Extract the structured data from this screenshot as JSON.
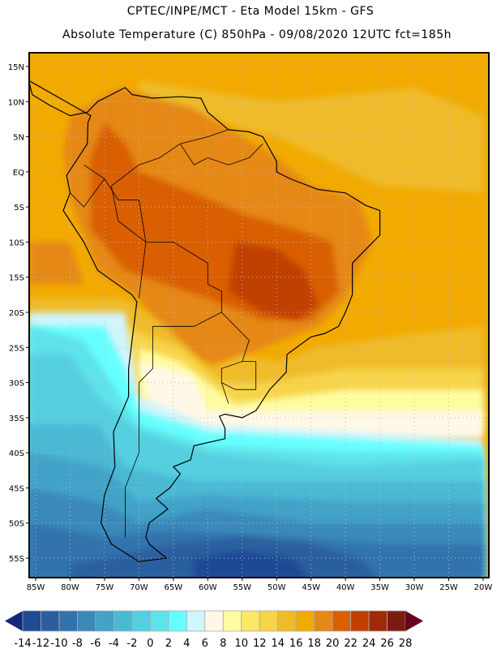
{
  "header": {
    "line1": "CPTEC/INPE/MCT -  Eta Model 15km - GFS",
    "line2": "Absolute Temperature (C) 850hPa - 09/08/2020 12UTC fct=185h"
  },
  "map": {
    "lat_labels": [
      "15N",
      "10N",
      "5N",
      "EQ",
      "5S",
      "10S",
      "15S",
      "20S",
      "25S",
      "30S",
      "35S",
      "40S",
      "45S",
      "50S",
      "55S"
    ],
    "lat_values": [
      15,
      10,
      5,
      0,
      -5,
      -10,
      -15,
      -20,
      -25,
      -30,
      -35,
      -40,
      -45,
      -50,
      -55
    ],
    "lon_labels": [
      "85W",
      "80W",
      "75W",
      "70W",
      "65W",
      "60W",
      "55W",
      "50W",
      "45W",
      "40W",
      "35W",
      "30W",
      "25W",
      "20W"
    ],
    "lon_values": [
      -85,
      -80,
      -75,
      -70,
      -65,
      -60,
      -55,
      -50,
      -45,
      -40,
      -35,
      -30,
      -25,
      -20
    ]
  },
  "colorbar": {
    "ticks": [
      "-14",
      "-12",
      "-10",
      "-8",
      "-6",
      "-4",
      "-2",
      "0",
      "2",
      "4",
      "6",
      "8",
      "10",
      "12",
      "14",
      "16",
      "18",
      "20",
      "22",
      "24",
      "26",
      "28"
    ],
    "under_color": "#15277a",
    "over_color": "#6a0020",
    "colors": [
      "#1f4a94",
      "#2a5e9f",
      "#3373ad",
      "#3a89ba",
      "#43a2c7",
      "#4bb8d4",
      "#54cfe0",
      "#5fe3ea",
      "#66ffff",
      "#d0f5fd",
      "#fff8e6",
      "#fffca0",
      "#fde768",
      "#f7d44a",
      "#efbb2b",
      "#f2aa00",
      "#e58814",
      "#d95f00",
      "#c04000",
      "#9e2a06",
      "#7a1c12"
    ]
  }
}
